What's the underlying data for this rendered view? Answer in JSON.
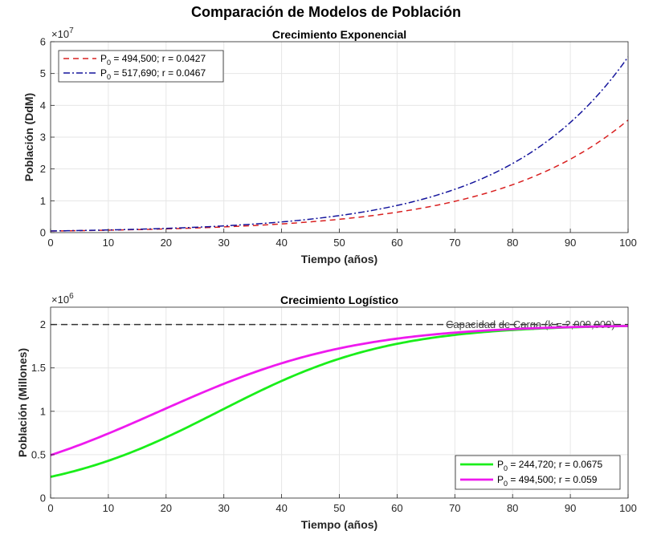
{
  "figure_title": "Comparación de Modelos de Población",
  "chart_data": [
    {
      "type": "line",
      "title": "Crecimiento Exponencial",
      "xlabel": "Tiempo (años)",
      "ylabel": "Población (DdM)",
      "xlim": [
        0,
        100
      ],
      "ylim": [
        0,
        60000000
      ],
      "xticks": [
        0,
        10,
        20,
        30,
        40,
        50,
        60,
        70,
        80,
        90,
        100
      ],
      "yticks": [
        0,
        1,
        2,
        3,
        4,
        5,
        6
      ],
      "y_multiplier_base": "×10",
      "y_multiplier_exp": "7",
      "grid": true,
      "legend_position": "top-left",
      "model": "exponential",
      "series": [
        {
          "legend_prefix": "P",
          "legend_sub": "0",
          "legend_rest": " = 494,500; r = 0.0427",
          "P0": 494500,
          "r": 0.0427,
          "color": "#d92020",
          "dash": "7,5"
        },
        {
          "legend_prefix": "P",
          "legend_sub": "0",
          "legend_rest": " = 517,690; r = 0.0467",
          "P0": 517690,
          "r": 0.0467,
          "color": "#14149c",
          "dash": "8,3,2,3"
        }
      ]
    },
    {
      "type": "line",
      "title": "Crecimiento Logístico",
      "xlabel": "Tiempo (años)",
      "ylabel": "Población (Millones)",
      "xlim": [
        0,
        100
      ],
      "ylim": [
        0,
        2200000
      ],
      "xticks": [
        0,
        10,
        20,
        30,
        40,
        50,
        60,
        70,
        80,
        90,
        100
      ],
      "yticks": [
        0,
        0.5,
        1,
        1.5,
        2
      ],
      "y_multiplier_base": "×10",
      "y_multiplier_exp": "6",
      "grid": true,
      "legend_position": "bottom-right",
      "model": "logistic",
      "K": 2000000,
      "capacity_label": "Capacidad de Carga (k = 2,000,000)",
      "series": [
        {
          "legend_prefix": "P",
          "legend_sub": "0",
          "legend_rest": " = 244,720; r = 0.0675",
          "P0": 244720,
          "r": 0.0675,
          "color": "#1aee1a"
        },
        {
          "legend_prefix": "P",
          "legend_sub": "0",
          "legend_rest": " = 494,500; r = 0.059",
          "P0": 494500,
          "r": 0.059,
          "color": "#ee1aee"
        }
      ]
    }
  ]
}
